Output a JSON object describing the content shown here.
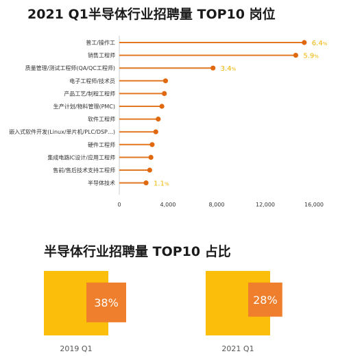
{
  "top_title": "2021 Q1半导体行业招聘量 TOP10 岗位",
  "bottom_title": "半导体行业招聘量 TOP10 占比",
  "colors": {
    "line": "#e27721",
    "dot": "#e0680f",
    "axis": "#cccccc",
    "label_highlight": "#f0b400",
    "square_outer": "#fbbe0a",
    "square_inner": "#ef7f2c"
  },
  "chart_data": [
    {
      "type": "bar",
      "orientation": "horizontal",
      "style": "lollipop",
      "categories": [
        "普工/操作工",
        "销售工程师",
        "质量管理/测试工程师(QA/QC工程师)",
        "电子工程师/技术员",
        "产品工艺/制程工程师",
        "生产计划/物料管理(PMC)",
        "软件工程师",
        "嵌入式软件开发(Linux/单片机/PLC/DSP…)",
        "硬件工程师",
        "集成电路IC设计/应用工程师",
        "售前/售后技术支持工程师",
        "半导体技术"
      ],
      "values": [
        15200,
        14500,
        7700,
        3800,
        3700,
        3500,
        3200,
        3000,
        2700,
        2600,
        2500,
        2200
      ],
      "annotations": [
        {
          "category": "普工/操作工",
          "value": "6.4",
          "unit": "%"
        },
        {
          "category": "销售工程师",
          "value": "5.9",
          "unit": "%"
        },
        {
          "category": "质量管理/测试工程师(QA/QC工程师)",
          "value": "3.4",
          "unit": "%"
        },
        {
          "category": "半导体技术",
          "value": "1.1",
          "unit": "%"
        }
      ],
      "xlim": [
        0,
        16000
      ],
      "xticks": [
        "0",
        "4,000",
        "8,000",
        "12,000",
        "16,000"
      ],
      "xtick_values": [
        0,
        4000,
        8000,
        12000,
        16000
      ]
    },
    {
      "type": "area-square",
      "periods": [
        {
          "label": "2019 Q1",
          "share": 38,
          "display": "38%"
        },
        {
          "label": "2021 Q1",
          "share": 28,
          "display": "28%"
        }
      ]
    }
  ]
}
